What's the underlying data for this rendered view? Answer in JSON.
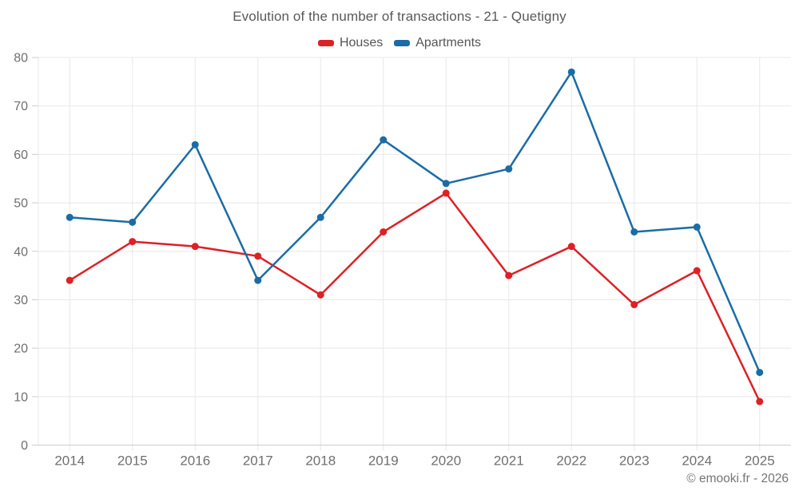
{
  "chart_data": {
    "type": "line",
    "title": "Evolution of the number of transactions - 21 - Quetigny",
    "categories": [
      "2014",
      "2015",
      "2016",
      "2017",
      "2018",
      "2019",
      "2020",
      "2021",
      "2022",
      "2023",
      "2024",
      "2025"
    ],
    "series": [
      {
        "name": "Houses",
        "color": "#dc2127",
        "values": [
          34,
          42,
          41,
          39,
          31,
          44,
          52,
          35,
          41,
          29,
          36,
          9
        ]
      },
      {
        "name": "Apartments",
        "color": "#1b6ca5",
        "values": [
          47,
          46,
          62,
          34,
          47,
          63,
          54,
          57,
          77,
          44,
          45,
          15
        ]
      }
    ],
    "xlabel": "",
    "ylabel": "",
    "ylim": [
      0,
      80
    ],
    "ytick_step": 10,
    "grid": true,
    "legend_position": "top-center",
    "marker": "circle",
    "colors": {
      "grid": "#e8e8e8",
      "axis": "#cccccc",
      "tick_label": "#6f6f6f",
      "title": "#595959"
    }
  },
  "footer": {
    "copyright": "© emooki.fr - 2026"
  }
}
